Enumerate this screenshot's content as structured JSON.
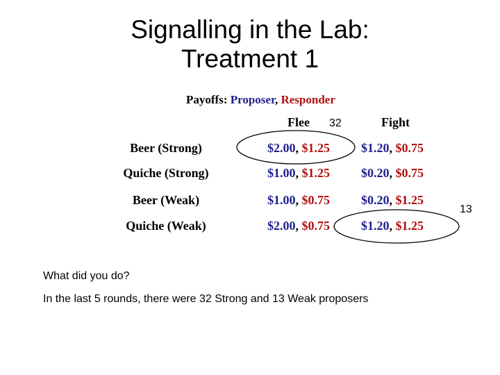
{
  "title": {
    "line1": "Signalling in the Lab:",
    "line2": "Treatment 1"
  },
  "payoffs_label": {
    "prefix": "Payoffs: ",
    "proposer": "Proposer",
    "sep": ", ",
    "responder": "Responder"
  },
  "table": {
    "columns": [
      "Flee",
      "Fight"
    ],
    "rows": [
      {
        "label": "Beer (Strong)",
        "flee": [
          "$2.00",
          "$1.25"
        ],
        "fight": [
          "$1.20",
          "$0.75"
        ]
      },
      {
        "label": "Quiche (Strong)",
        "flee": [
          "$1.00",
          "$1.25"
        ],
        "fight": [
          "$0.20",
          "$0.75"
        ]
      },
      {
        "label": "Beer (Weak)",
        "flee": [
          "$1.00",
          "$0.75"
        ],
        "fight": [
          "$0.20",
          "$1.25"
        ]
      },
      {
        "label": "Quiche (Weak)",
        "flee": [
          "$2.00",
          "$0.75"
        ],
        "fight": [
          "$1.20",
          "$1.25"
        ]
      }
    ],
    "cell_sep": ", "
  },
  "annotations": {
    "strong_count": "32",
    "weak_count": "13"
  },
  "notes": {
    "question": "What did you do?",
    "summary": "In the last 5 rounds, there were 32 Strong and 13 Weak proposers"
  },
  "colors": {
    "proposer": "#1f1f8f",
    "responder": "#b01010"
  }
}
